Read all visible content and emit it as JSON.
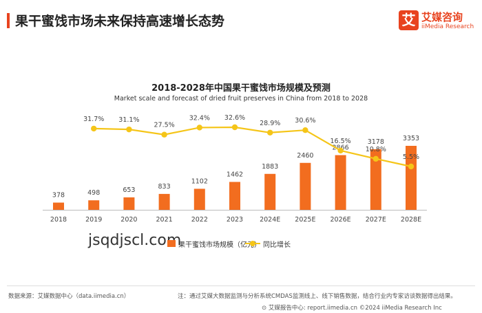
{
  "header": {
    "title": "果干蜜饯市场未来保持高速增长态势",
    "logo_mark": "艾",
    "logo_cn": "艾媒咨询",
    "logo_en": "iiMedia Research"
  },
  "chart_data": {
    "type": "bar",
    "title": "2018-2028年中国果干蜜饯市场规模及预测",
    "subtitle": "Market scale and forecast of dried fruit preserves in China from 2018 to 2028",
    "categories": [
      "2018",
      "2019",
      "2020",
      "2021",
      "2022",
      "2023",
      "2024E",
      "2025E",
      "2026E",
      "2027E",
      "2028E"
    ],
    "series": [
      {
        "name": "果干蜜饯市场规模（亿元）",
        "type": "bar",
        "color": "#f26d1f",
        "values": [
          378,
          498,
          653,
          833,
          1102,
          1462,
          1883,
          2460,
          2866,
          3178,
          3353
        ],
        "labels": [
          "378",
          "498",
          "653",
          "833",
          "1102",
          "1462",
          "1883",
          "2460",
          "2866",
          "3178",
          "3353"
        ]
      },
      {
        "name": "同比增长",
        "type": "line",
        "color": "#f5c518",
        "values": [
          null,
          31.7,
          31.1,
          27.5,
          32.4,
          32.6,
          28.9,
          30.6,
          16.5,
          10.8,
          5.5
        ],
        "labels": [
          "",
          "31.7%",
          "31.1%",
          "27.5%",
          "32.4%",
          "32.6%",
          "28.9%",
          "30.6%",
          "16.5%",
          "10.8%",
          "5.5%"
        ]
      }
    ],
    "grid": false,
    "legend": "bottom"
  },
  "watermark": "jsqdjscl.com",
  "footer": {
    "source": "数据来源：艾媒数据中心（data.iimedia.cn）",
    "note": "注：通过艾媒大数据监测与分析系统CMDAS监测线上、线下销售数据，结合行业内专家访谈数据得出结果。",
    "bottom": "⊙ 艾媒报告中心: report.iimedia.cn    ©2024  iiMedia Research Inc"
  }
}
